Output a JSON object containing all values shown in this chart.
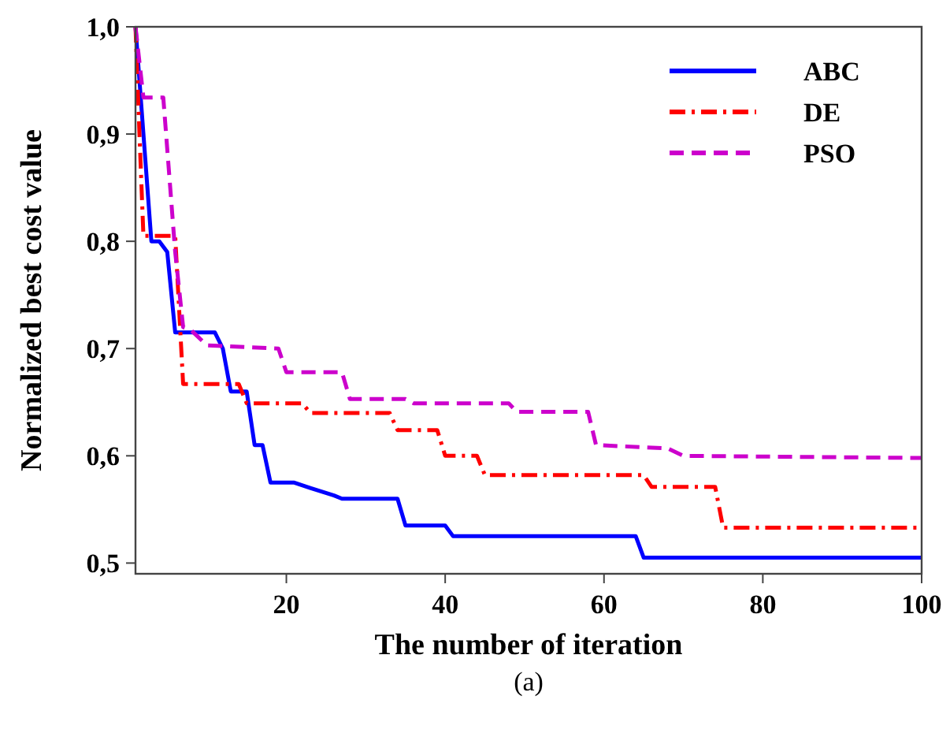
{
  "chart_data": {
    "type": "line",
    "xlabel": "The number of iteration",
    "ylabel": "Normalized best cost value",
    "annotations": [
      "(a)"
    ],
    "xlim": [
      1,
      100
    ],
    "xticks": [
      20,
      40,
      60,
      80,
      100
    ],
    "ylim": [
      0.49,
      1.0
    ],
    "yticks": [
      {
        "value": 0.5,
        "label": "0,5"
      },
      {
        "value": 0.6,
        "label": "0,6"
      },
      {
        "value": 0.7,
        "label": "0,7"
      },
      {
        "value": 0.8,
        "label": "0,8"
      },
      {
        "value": 0.9,
        "label": "0,9"
      },
      {
        "value": 1.0,
        "label": "1,0"
      }
    ],
    "grid": false,
    "legend": "top right",
    "series": [
      {
        "name": "ABC",
        "color": "#0000ff",
        "line_style": "solid",
        "x": [
          1,
          2,
          3,
          4,
          5,
          6,
          11,
          12,
          13,
          15,
          16,
          17,
          18,
          21,
          23,
          26,
          27,
          34,
          35,
          40,
          41,
          64,
          65,
          100
        ],
        "values": [
          1.0,
          0.9,
          0.8,
          0.8,
          0.79,
          0.715,
          0.715,
          0.7,
          0.66,
          0.66,
          0.61,
          0.61,
          0.575,
          0.575,
          0.57,
          0.563,
          0.56,
          0.56,
          0.535,
          0.535,
          0.525,
          0.525,
          0.505,
          0.505
        ]
      },
      {
        "name": "DE",
        "color": "#ff0000",
        "line_style": "dashdot",
        "x": [
          1,
          1.5,
          2,
          6,
          7,
          14,
          15,
          22,
          23,
          33,
          34,
          39,
          40,
          44,
          45,
          65,
          66,
          74,
          75,
          100
        ],
        "values": [
          1.0,
          0.9,
          0.805,
          0.805,
          0.667,
          0.667,
          0.649,
          0.649,
          0.64,
          0.64,
          0.624,
          0.624,
          0.6,
          0.6,
          0.582,
          0.582,
          0.571,
          0.571,
          0.533,
          0.533
        ]
      },
      {
        "name": "PSO",
        "color": "#cc00cc",
        "line_style": "dashed",
        "x": [
          1,
          2,
          4.5,
          6,
          7,
          8,
          10,
          19,
          20,
          27,
          28,
          35,
          36,
          48,
          49,
          58,
          59,
          68,
          70,
          100
        ],
        "values": [
          1.0,
          0.934,
          0.934,
          0.79,
          0.72,
          0.717,
          0.703,
          0.7,
          0.678,
          0.678,
          0.653,
          0.653,
          0.649,
          0.649,
          0.641,
          0.641,
          0.61,
          0.607,
          0.6,
          0.598
        ]
      }
    ]
  }
}
